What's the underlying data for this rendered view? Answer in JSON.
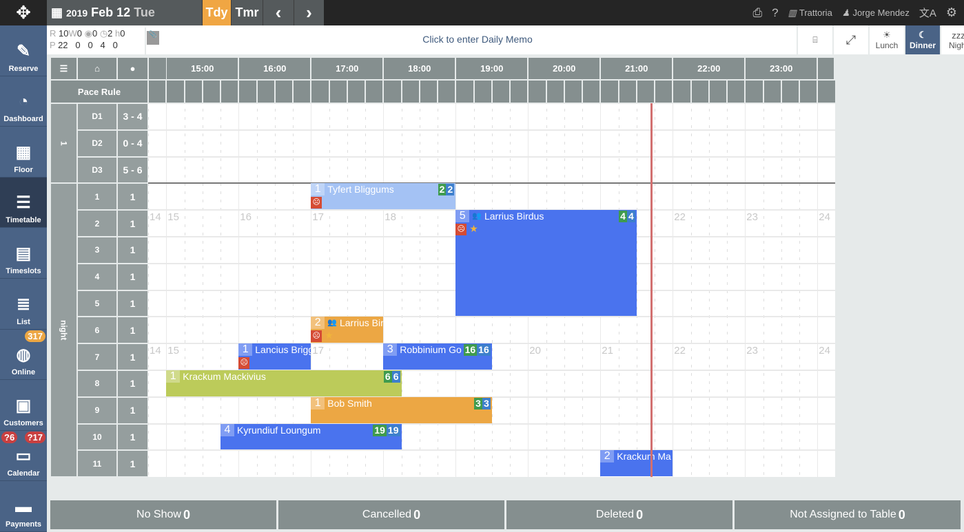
{
  "top": {
    "year": "2019",
    "date": "Feb 12",
    "dow": "Tue",
    "today": "Tdy",
    "tomorrow": "Tmr",
    "prev": "‹",
    "next": "›",
    "restaurant": "Trattoria",
    "user": "Jorge Mendez"
  },
  "stats": {
    "r_label": "R",
    "r": "10",
    "w_label": "W",
    "w": "0",
    "web": "0",
    "clock": "2",
    "chair": "0",
    "p_label": "P",
    "p": "22",
    "p_w": "0",
    "p_web": "0",
    "p_clock": "4",
    "p_chair": "0"
  },
  "memo": "Click to enter Daily Memo",
  "shifts": [
    {
      "label": "Lunch",
      "icon": "sun-icon",
      "active": false
    },
    {
      "label": "Dinner",
      "icon": "moon-icon",
      "active": true
    },
    {
      "label": "Night",
      "icon": "zzz-icon",
      "active": false
    }
  ],
  "sidebar": [
    {
      "label": "Reserve",
      "icon": "✎"
    },
    {
      "label": "Dashboard",
      "icon": "◔"
    },
    {
      "label": "Floor",
      "icon": "▦"
    },
    {
      "label": "Timetable",
      "icon": "☰",
      "active": true
    },
    {
      "label": "Timeslots",
      "icon": "▤"
    },
    {
      "label": "List",
      "icon": "≣"
    },
    {
      "label": "Online",
      "icon": "◍",
      "badge": "317"
    },
    {
      "label": "Customers",
      "icon": "▣"
    },
    {
      "label": "Calendar",
      "icon": "▭",
      "badges": [
        "?6",
        "?17"
      ]
    },
    {
      "label": "Payments",
      "icon": "▬"
    }
  ],
  "grid": {
    "pace_rule": "Pace Rule",
    "hours": [
      "15:00",
      "16:00",
      "17:00",
      "18:00",
      "19:00",
      "20:00",
      "21:00",
      "22:00",
      "23:00"
    ],
    "groups": [
      {
        "label": "1",
        "rows": 3
      },
      {
        "label": "night",
        "rows": 11
      }
    ],
    "rows": [
      {
        "table": "D1",
        "pace": "3 - 4"
      },
      {
        "table": "D2",
        "pace": "0 - 4"
      },
      {
        "table": "D3",
        "pace": "5 - 6"
      },
      {
        "table": "1",
        "pace": "1"
      },
      {
        "table": "2",
        "pace": "1"
      },
      {
        "table": "3",
        "pace": "1"
      },
      {
        "table": "4",
        "pace": "1"
      },
      {
        "table": "5",
        "pace": "1"
      },
      {
        "table": "6",
        "pace": "1"
      },
      {
        "table": "7",
        "pace": "1"
      },
      {
        "table": "8",
        "pace": "1"
      },
      {
        "table": "9",
        "pace": "1"
      },
      {
        "table": "10",
        "pace": "1"
      },
      {
        "table": "11",
        "pace": "1"
      }
    ],
    "hour_markers": {
      "rows": [
        4,
        9
      ],
      "labels": [
        "14",
        "15",
        "16",
        "17",
        "18",
        "19",
        "20",
        "21",
        "22",
        "23",
        "24"
      ]
    },
    "now": "21:42"
  },
  "reservations": [
    {
      "name": "Tyfert Bliggums",
      "party": "1",
      "row": 3,
      "rows": 1,
      "start": "17:00",
      "end": "19:00",
      "color": "#a4c2f4",
      "b1": "2",
      "b2": "2",
      "face": true
    },
    {
      "name": "Larrius Birdus",
      "party": "5",
      "row": 4,
      "rows": 4,
      "start": "19:00",
      "end": "21:30",
      "color": "#4a73ee",
      "b1": "4",
      "b2": "4",
      "face": true,
      "star": true,
      "group": true
    },
    {
      "name": "Larrius Bir",
      "party": "2",
      "row": 8,
      "rows": 1,
      "start": "17:00",
      "end": "18:00",
      "color": "#eca744",
      "face": true,
      "star": true,
      "group": true
    },
    {
      "name": "Lancius Brigg",
      "party": "1",
      "row": 9,
      "rows": 1,
      "start": "16:00",
      "end": "17:00",
      "color": "#4a73ee",
      "face": true
    },
    {
      "name": "Robbinium Go",
      "party": "3",
      "row": 9,
      "rows": 1,
      "start": "18:00",
      "end": "19:30",
      "color": "#4a73ee",
      "b1": "16",
      "b2": "16"
    },
    {
      "name": "Krackum Mackivius",
      "party": "1",
      "row": 10,
      "rows": 1,
      "start": "15:00",
      "end": "18:15",
      "color": "#bccb5a",
      "b1": "6",
      "b2": "6"
    },
    {
      "name": "Bob Smith",
      "party": "1",
      "row": 11,
      "rows": 1,
      "start": "17:00",
      "end": "19:30",
      "color": "#eca744",
      "b1": "3",
      "b2": "3"
    },
    {
      "name": "Kyrundiuf Loungum",
      "party": "4",
      "row": 12,
      "rows": 1,
      "start": "15:45",
      "end": "18:15",
      "color": "#4a73ee",
      "b1": "19",
      "b2": "19"
    },
    {
      "name": "Krackum Ma",
      "party": "2",
      "row": 13,
      "rows": 1,
      "start": "21:00",
      "end": "22:00",
      "color": "#4a73ee"
    }
  ],
  "footer": [
    {
      "label": "No Show",
      "count": "0"
    },
    {
      "label": "Cancelled",
      "count": "0"
    },
    {
      "label": "Deleted",
      "count": "0"
    },
    {
      "label": "Not Assigned to Table",
      "count": "0"
    }
  ],
  "colors": {
    "accent": "#f0a643",
    "sidebar": "#4a6386",
    "badge_green": "#3f9b4e",
    "badge_blue": "#3d7fcc",
    "now_line": "#d27070"
  }
}
